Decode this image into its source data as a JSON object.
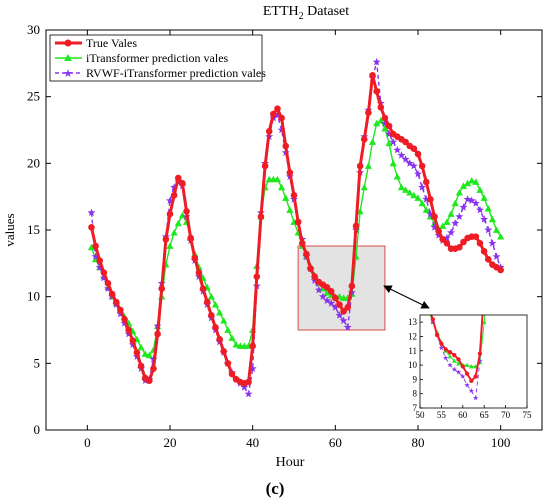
{
  "chart_data": {
    "type": "line",
    "title": "ETTH",
    "title_sub": "2",
    "title_suffix": " Dataset",
    "xlabel": "Hour",
    "ylabel": "values",
    "panel_label": "(c)",
    "xlim": [
      -10,
      110
    ],
    "ylim": [
      0,
      30
    ],
    "xticks": [
      0,
      20,
      40,
      60,
      80,
      100
    ],
    "yticks": [
      0,
      5,
      10,
      15,
      20,
      25,
      30
    ],
    "grid": false,
    "legend_position": "top-left",
    "series": [
      {
        "name": "True Vales",
        "color": "#ee1c24",
        "marker": "circle",
        "x": [
          1,
          2,
          3,
          4,
          5,
          6,
          7,
          8,
          9,
          10,
          11,
          12,
          13,
          14,
          15,
          16,
          17,
          18,
          19,
          20,
          21,
          22,
          23,
          24,
          25,
          26,
          27,
          28,
          29,
          30,
          31,
          32,
          33,
          34,
          35,
          36,
          37,
          38,
          39,
          40,
          41,
          42,
          43,
          44,
          45,
          46,
          47,
          48,
          49,
          50,
          51,
          52,
          53,
          54,
          55,
          56,
          57,
          58,
          59,
          60,
          61,
          62,
          63,
          64,
          65,
          66,
          67,
          68,
          69,
          70,
          71,
          72,
          73,
          74,
          75,
          76,
          77,
          78,
          79,
          80,
          81,
          82,
          83,
          84,
          85,
          86,
          87,
          88,
          89,
          90,
          91,
          92,
          93,
          94,
          95,
          96,
          97,
          98,
          99,
          100
        ],
        "values": [
          15.2,
          13.8,
          12.7,
          11.8,
          11.0,
          10.2,
          9.6,
          9.0,
          8.3,
          7.5,
          6.7,
          5.8,
          4.8,
          3.9,
          3.7,
          4.6,
          7.2,
          10.6,
          14.3,
          16.2,
          17.6,
          18.9,
          18.5,
          16.4,
          14.4,
          12.9,
          11.8,
          10.6,
          9.6,
          8.6,
          7.7,
          6.8,
          5.9,
          5.0,
          4.2,
          3.8,
          3.6,
          3.5,
          3.6,
          6.3,
          11.5,
          16.0,
          19.8,
          22.4,
          23.7,
          24.1,
          23.4,
          21.3,
          19.3,
          17.6,
          15.6,
          14.0,
          13.2,
          12.1,
          11.5,
          11.1,
          10.9,
          10.7,
          10.4,
          9.9,
          9.4,
          8.9,
          9.2,
          10.8,
          15.3,
          19.8,
          21.8,
          23.8,
          26.6,
          25.4,
          24.2,
          23.4,
          22.8,
          22.2,
          22.0,
          21.8,
          21.6,
          21.3,
          21.1,
          20.7,
          19.8,
          18.6,
          17.3,
          16.0,
          14.9,
          14.3,
          14.0,
          13.6,
          13.6,
          13.7,
          14.1,
          14.4,
          14.5,
          14.5,
          14.0,
          13.4,
          12.8,
          12.4,
          12.2,
          12.0
        ]
      },
      {
        "name": "iTransformer prediction vales",
        "color": "#1ee81e",
        "marker": "triangle",
        "x": [
          1,
          2,
          3,
          4,
          5,
          6,
          7,
          8,
          9,
          10,
          11,
          12,
          13,
          14,
          15,
          16,
          17,
          18,
          19,
          20,
          21,
          22,
          23,
          24,
          25,
          26,
          27,
          28,
          29,
          30,
          31,
          32,
          33,
          34,
          35,
          36,
          37,
          38,
          39,
          40,
          41,
          42,
          43,
          44,
          45,
          46,
          47,
          48,
          49,
          50,
          51,
          52,
          53,
          54,
          55,
          56,
          57,
          58,
          59,
          60,
          61,
          62,
          63,
          64,
          65,
          66,
          67,
          68,
          69,
          70,
          71,
          72,
          73,
          74,
          75,
          76,
          77,
          78,
          79,
          80,
          81,
          82,
          83,
          84,
          85,
          86,
          87,
          88,
          89,
          90,
          91,
          92,
          93,
          94,
          95,
          96,
          97,
          98,
          99,
          100
        ],
        "values": [
          13.7,
          12.8,
          12.2,
          11.5,
          10.7,
          10.0,
          9.5,
          9.0,
          8.5,
          8.0,
          7.4,
          6.8,
          6.2,
          5.7,
          5.6,
          6.0,
          7.8,
          10.0,
          12.4,
          13.8,
          14.8,
          15.5,
          16.1,
          15.6,
          14.4,
          13.2,
          12.2,
          11.4,
          10.7,
          10.0,
          9.4,
          8.8,
          8.2,
          7.5,
          6.9,
          6.4,
          6.3,
          6.3,
          6.3,
          7.5,
          12.3,
          16.0,
          18.2,
          18.8,
          18.8,
          18.8,
          18.2,
          17.4,
          16.5,
          15.6,
          14.8,
          13.8,
          13.0,
          12.3,
          11.6,
          11.0,
          10.6,
          10.3,
          10.1,
          10.0,
          10.0,
          9.9,
          9.9,
          10.2,
          13.0,
          16.4,
          18.2,
          19.8,
          21.6,
          23.0,
          23.2,
          22.6,
          21.5,
          20.0,
          19.0,
          18.2,
          18.0,
          17.8,
          17.6,
          17.4,
          17.0,
          16.5,
          16.0,
          15.5,
          15.1,
          15.3,
          15.6,
          16.2,
          17.0,
          17.8,
          18.3,
          18.5,
          18.7,
          18.6,
          18.0,
          17.4,
          16.6,
          15.8,
          15.0,
          14.5
        ]
      },
      {
        "name": "RVWF-iTransformer prediction vales",
        "color": "#8833ee",
        "marker": "star",
        "x": [
          1,
          2,
          3,
          4,
          5,
          6,
          7,
          8,
          9,
          10,
          11,
          12,
          13,
          14,
          15,
          16,
          17,
          18,
          19,
          20,
          21,
          22,
          23,
          24,
          25,
          26,
          27,
          28,
          29,
          30,
          31,
          32,
          33,
          34,
          35,
          36,
          37,
          38,
          39,
          40,
          41,
          42,
          43,
          44,
          45,
          46,
          47,
          48,
          49,
          50,
          51,
          52,
          53,
          54,
          55,
          56,
          57,
          58,
          59,
          60,
          61,
          62,
          63,
          64,
          65,
          66,
          67,
          68,
          69,
          70,
          71,
          72,
          73,
          74,
          75,
          76,
          77,
          78,
          79,
          80,
          81,
          82,
          83,
          84,
          85,
          86,
          87,
          88,
          89,
          90,
          91,
          92,
          93,
          94,
          95,
          96,
          97,
          98,
          99,
          100
        ],
        "values": [
          16.3,
          13.0,
          12.2,
          11.4,
          10.6,
          10.0,
          9.4,
          8.7,
          8.0,
          7.2,
          6.4,
          5.5,
          4.6,
          3.7,
          3.8,
          5.3,
          7.8,
          11.0,
          14.5,
          17.2,
          18.2,
          18.6,
          18.3,
          16.0,
          14.2,
          12.7,
          11.5,
          10.4,
          9.4,
          8.4,
          7.5,
          6.6,
          5.8,
          5.0,
          4.3,
          3.8,
          3.5,
          3.2,
          2.7,
          4.6,
          10.8,
          16.3,
          20.0,
          22.0,
          23.4,
          23.6,
          22.5,
          20.8,
          19.0,
          17.3,
          15.6,
          14.3,
          13.0,
          12.1,
          11.2,
          10.5,
          10.0,
          9.7,
          9.5,
          9.2,
          8.6,
          8.2,
          7.7,
          10.3,
          15.0,
          19.3,
          22.0,
          24.0,
          26.4,
          27.6,
          24.5,
          23.0,
          22.2,
          21.6,
          21.0,
          20.6,
          20.3,
          20.0,
          19.8,
          19.2,
          18.2,
          17.3,
          16.2,
          15.2,
          14.6,
          14.2,
          14.4,
          14.8,
          15.5,
          16.0,
          16.7,
          17.3,
          17.2,
          17.0,
          16.5,
          15.8,
          15.0,
          14.0,
          13.0,
          12.2
        ]
      }
    ],
    "inset": {
      "xlim": [
        50,
        75
      ],
      "ylim": [
        7,
        13.5
      ],
      "xticks": [
        50,
        55,
        60,
        65,
        70,
        75
      ],
      "yticks": [
        7,
        8,
        9,
        10,
        11,
        12,
        13
      ]
    },
    "zoom_box_xlim": [
      51,
      72
    ],
    "zoom_box_ylim": [
      7.5,
      13.8
    ]
  }
}
